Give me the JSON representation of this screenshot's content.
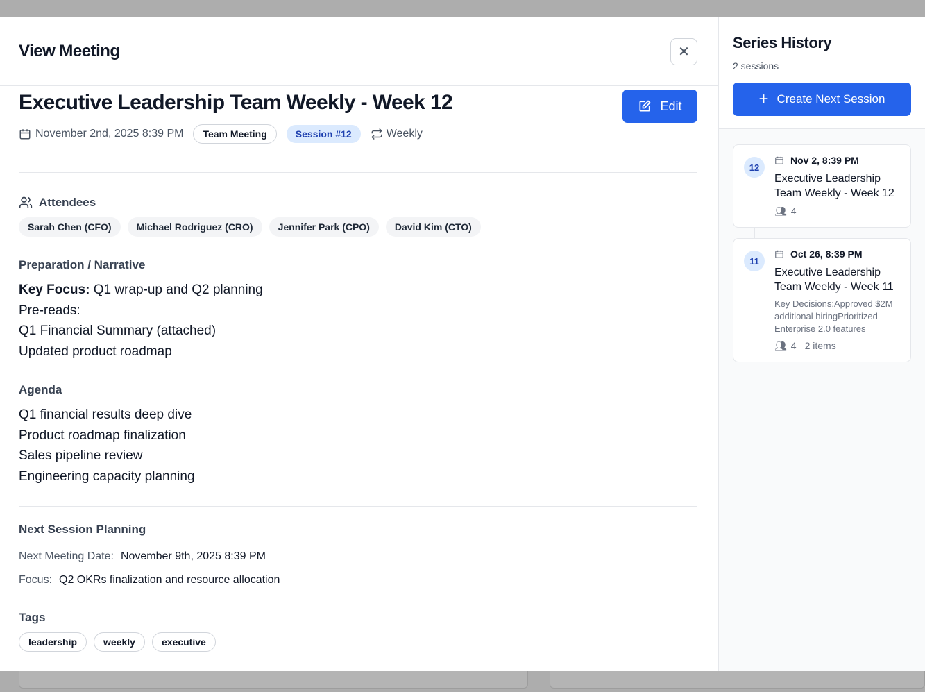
{
  "modal": {
    "title": "View Meeting",
    "close_icon": "close-icon"
  },
  "meeting": {
    "title": "Executive Leadership Team Weekly - Week 12",
    "edit_label": "Edit",
    "date": "November 2nd, 2025 8:39 PM",
    "type": "Team Meeting",
    "session": "Session #12",
    "recurrence": "Weekly"
  },
  "attendees": {
    "heading": "Attendees",
    "items": [
      "Sarah Chen (CFO)",
      "Michael Rodriguez (CRO)",
      "Jennifer Park (CPO)",
      "David Kim (CTO)"
    ]
  },
  "preparation": {
    "heading": "Preparation / Narrative",
    "key_label": "Key Focus:",
    "key_value": " Q1 wrap-up and Q2 planning",
    "lines": [
      "Pre-reads:",
      "Q1 Financial Summary (attached)",
      "Updated product roadmap"
    ]
  },
  "agenda": {
    "heading": "Agenda",
    "items": [
      "Q1 financial results deep dive",
      "Product roadmap finalization",
      "Sales pipeline review",
      "Engineering capacity planning"
    ]
  },
  "next_session": {
    "heading": "Next Session Planning",
    "date_label": "Next Meeting Date:",
    "date_value": "November 9th, 2025 8:39 PM",
    "focus_label": "Focus:",
    "focus_value": "Q2 OKRs finalization and resource allocation"
  },
  "tags": {
    "heading": "Tags",
    "items": [
      "leadership",
      "weekly",
      "executive"
    ]
  },
  "series": {
    "title": "Series History",
    "count": "2 sessions",
    "create_label": "Create Next Session",
    "sessions": [
      {
        "number": "12",
        "date": "Nov 2, 8:39 PM",
        "title": "Executive Leadership Team Weekly - Week 12",
        "attendees": "4"
      },
      {
        "number": "11",
        "date": "Oct 26, 8:39 PM",
        "title": "Executive Leadership Team Weekly - Week 11",
        "desc1": "Key Decisions:Approved $2M additional",
        "desc2": "hiringPrioritized Enterprise 2.0 features",
        "attendees": "4",
        "items": "2 items"
      }
    ]
  },
  "colors": {
    "accent": "#2563eb",
    "session_badge_bg": "#dbeafe"
  }
}
